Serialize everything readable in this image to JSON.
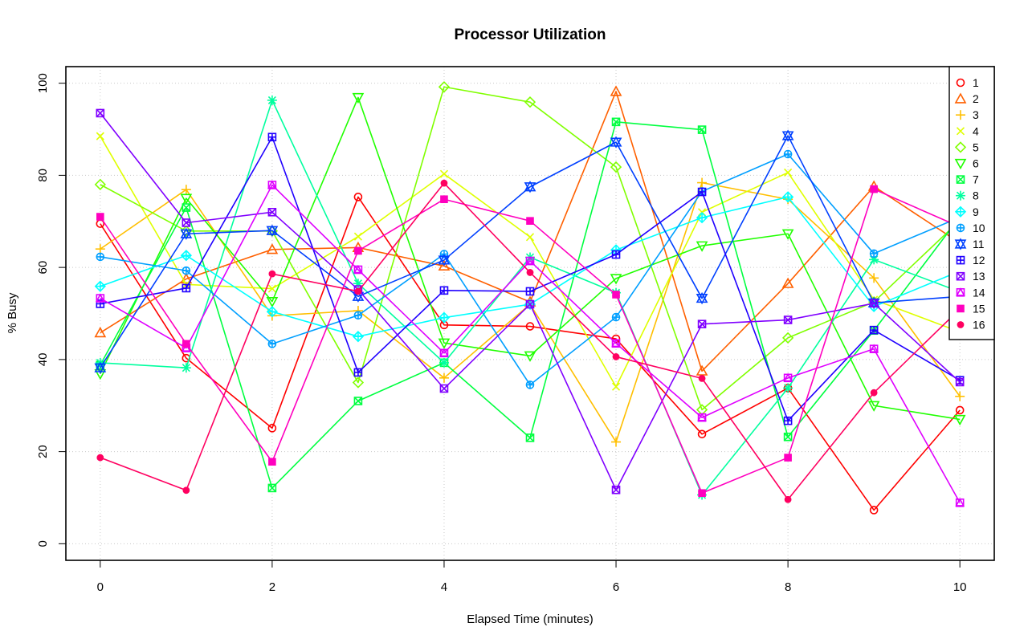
{
  "chart_data": {
    "type": "line",
    "title": "Processor Utilization",
    "xlabel": "Elapsed Time (minutes)",
    "ylabel": "% Busy",
    "xlim": [
      -0.4,
      10.4
    ],
    "ylim": [
      -3.6,
      103.6
    ],
    "x_ticks": [
      0,
      2,
      4,
      6,
      8,
      10
    ],
    "y_ticks": [
      0,
      20,
      40,
      60,
      80,
      100
    ],
    "grid": true,
    "legend_position": "top-right",
    "x": [
      0,
      1,
      2,
      3,
      4,
      5,
      6,
      7,
      8,
      9,
      10
    ],
    "series": [
      {
        "name": "1",
        "color": "#ff0000",
        "marker": "circle",
        "values": [
          69.5,
          40.3,
          25.1,
          75.3,
          47.5,
          47.2,
          44.5,
          23.8,
          33.8,
          7.3,
          29.0
        ]
      },
      {
        "name": "2",
        "color": "#ff6000",
        "marker": "triangle-up",
        "values": [
          45.8,
          57.5,
          63.9,
          64.3,
          60.3,
          52.5,
          98.2,
          37.5,
          56.5,
          77.6,
          65.3
        ]
      },
      {
        "name": "3",
        "color": "#ffbf00",
        "marker": "plus",
        "values": [
          64.0,
          76.9,
          49.5,
          50.6,
          36.0,
          52.0,
          22.1,
          78.4,
          74.8,
          57.7,
          32.0
        ]
      },
      {
        "name": "4",
        "color": "#dfff00",
        "marker": "cross",
        "values": [
          88.5,
          56.3,
          55.4,
          66.7,
          80.3,
          66.6,
          34.1,
          72.0,
          80.6,
          53.0,
          46.0
        ]
      },
      {
        "name": "5",
        "color": "#80ff00",
        "marker": "diamond",
        "values": [
          78.0,
          67.9,
          67.9,
          35.0,
          99.2,
          95.9,
          81.8,
          29.1,
          44.7,
          52.5,
          70.2
        ]
      },
      {
        "name": "6",
        "color": "#20ff00",
        "marker": "triangle-down",
        "values": [
          36.9,
          75.0,
          52.6,
          96.9,
          43.6,
          40.8,
          57.6,
          64.7,
          67.3,
          30.0,
          27.0
        ]
      },
      {
        "name": "7",
        "color": "#00ff40",
        "marker": "square-x",
        "values": [
          38.8,
          73.0,
          12.1,
          31.0,
          39.3,
          23.0,
          91.6,
          89.9,
          23.2,
          46.3,
          71.0
        ]
      },
      {
        "name": "8",
        "color": "#00ff9f",
        "marker": "asterisk",
        "values": [
          39.3,
          38.2,
          96.3,
          56.5,
          39.3,
          62.2,
          54.5,
          10.6,
          33.8,
          61.7,
          54.7
        ]
      },
      {
        "name": "9",
        "color": "#00ffff",
        "marker": "diamond-plus",
        "values": [
          55.9,
          62.6,
          50.4,
          45.0,
          49.1,
          52.0,
          63.8,
          70.8,
          75.3,
          51.5,
          59.2
        ]
      },
      {
        "name": "10",
        "color": "#009fff",
        "marker": "circle-plus",
        "values": [
          62.3,
          59.3,
          43.4,
          49.6,
          62.9,
          34.5,
          49.2,
          76.5,
          84.6,
          63.0,
          70.9
        ]
      },
      {
        "name": "11",
        "color": "#0040ff",
        "marker": "star-of-david",
        "values": [
          38.2,
          67.3,
          68.0,
          53.7,
          61.6,
          77.5,
          87.2,
          53.3,
          88.6,
          52.3,
          53.7
        ]
      },
      {
        "name": "12",
        "color": "#2000ff",
        "marker": "square-plus",
        "values": [
          52.1,
          55.5,
          88.3,
          37.2,
          55.0,
          54.8,
          62.8,
          76.4,
          26.7,
          46.4,
          35.5
        ]
      },
      {
        "name": "13",
        "color": "#8000ff",
        "marker": "square-cross",
        "values": [
          93.5,
          69.7,
          72.0,
          55.2,
          33.7,
          52.0,
          11.7,
          47.7,
          48.6,
          52.2,
          35.1
        ]
      },
      {
        "name": "14",
        "color": "#df00ff",
        "marker": "square-triangle",
        "values": [
          53.3,
          42.5,
          77.9,
          59.5,
          41.4,
          61.4,
          43.5,
          27.4,
          36.0,
          42.3,
          8.9
        ]
      },
      {
        "name": "15",
        "color": "#ff00bf",
        "marker": "square-filled",
        "values": [
          71.0,
          43.4,
          17.8,
          63.6,
          74.8,
          70.1,
          54.1,
          11.0,
          18.7,
          77.0,
          68.8
        ]
      },
      {
        "name": "16",
        "color": "#ff0060",
        "marker": "dot",
        "values": [
          18.7,
          11.6,
          58.6,
          54.8,
          78.3,
          58.9,
          40.6,
          35.9,
          9.6,
          32.8,
          51.0
        ]
      }
    ]
  }
}
